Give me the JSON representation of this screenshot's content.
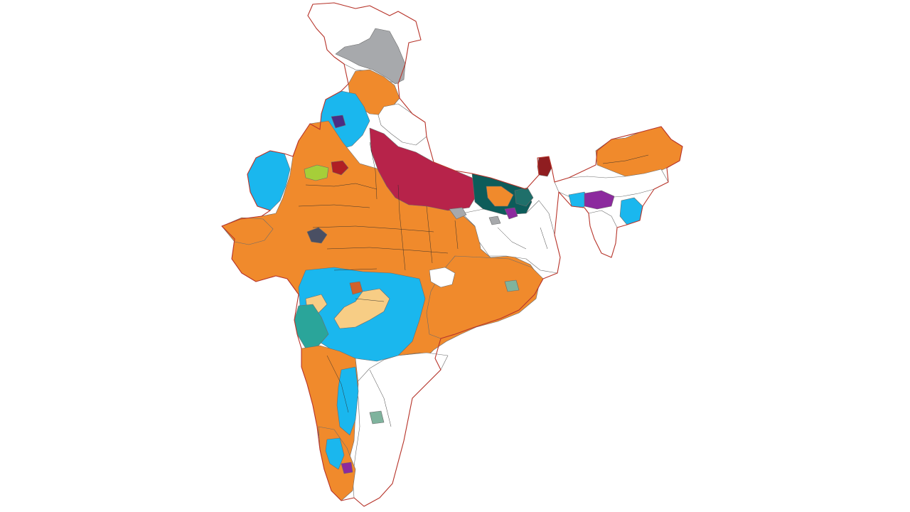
{
  "colors": {
    "background": "#ffffff",
    "orange": "#f08a2c",
    "sky_blue": "#1ab7ee",
    "crimson": "#b7234a",
    "white": "#ffffff",
    "grey": "#a7a9ac",
    "teal": "#1f6f6a",
    "dark_teal": "#0d5c5a",
    "sea_green": "#2aa59a",
    "tan": "#f7cd85",
    "lime": "#a6ce39",
    "purple": "#8c2a9e",
    "indigo": "#4b2c83",
    "maroon": "#8f1d20",
    "dark_red": "#b01f24",
    "slate": "#4a4f63",
    "rust": "#d0612b",
    "sage": "#7fb39d",
    "border_red": "#b8342a"
  },
  "map": {
    "subject": "india-constituency-map",
    "legend_visible": false
  }
}
